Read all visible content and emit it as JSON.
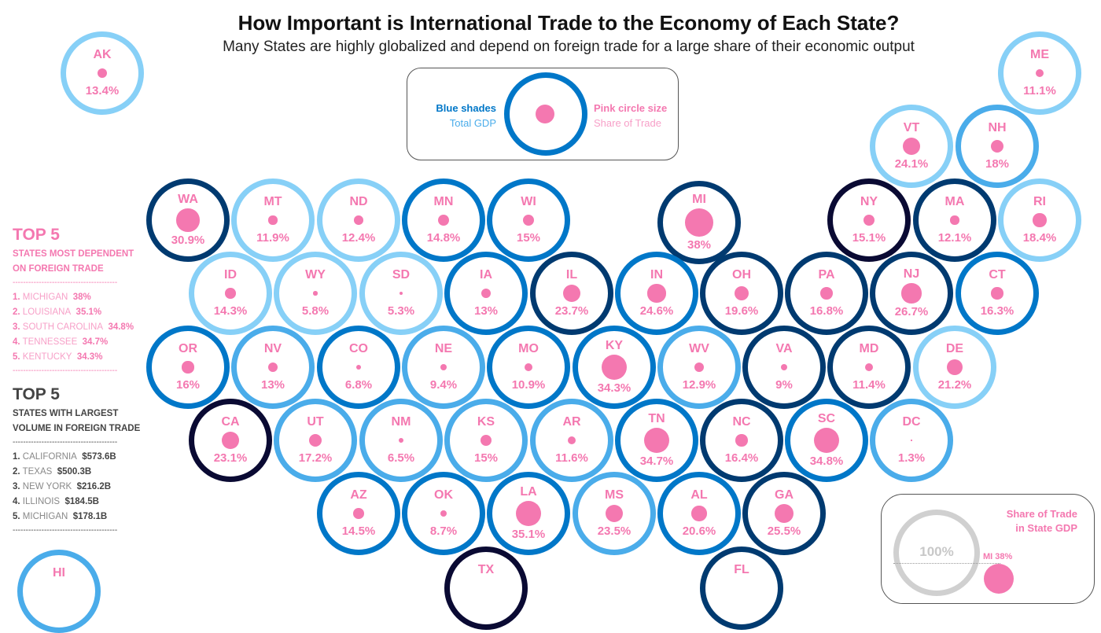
{
  "header": {
    "title": "How Important is International Trade to the Economy of Each State?",
    "subtitle": "Many States are highly globalized and depend on foreign trade for a large share of their economic output"
  },
  "legend": {
    "blue_label": "Blue shades",
    "blue_sub": "Total GDP",
    "pink_label": "Pink circle size",
    "pink_sub": "Share of Trade"
  },
  "colors": {
    "pink": "#f478b0",
    "gdp_shades": [
      "#87d0f7",
      "#4aacea",
      "#0077c8",
      "#003a70",
      "#0a0a33"
    ]
  },
  "top_dependent": {
    "title": "TOP 5",
    "subtitle_1": "STATES MOST DEPENDENT",
    "subtitle_2": "ON FOREIGN TRADE",
    "divider": "----------------------------------------",
    "items": [
      {
        "rank": "1.",
        "name": "MICHIGAN",
        "value": "38%"
      },
      {
        "rank": "2.",
        "name": "LOUISIANA",
        "value": "35.1%"
      },
      {
        "rank": "3.",
        "name": "SOUTH CAROLINA",
        "value": "34.8%"
      },
      {
        "rank": "4.",
        "name": "TENNESSEE",
        "value": "34.7%"
      },
      {
        "rank": "5.",
        "name": "KENTUCKY",
        "value": "34.3%"
      }
    ]
  },
  "top_volume": {
    "title": "TOP 5",
    "subtitle_1": "STATES WITH LARGEST",
    "subtitle_2": "VOLUME IN FOREIGN TRADE",
    "divider": "----------------------------------------",
    "items": [
      {
        "rank": "1.",
        "name": "CALIFORNIA",
        "value": "$573.6B"
      },
      {
        "rank": "2.",
        "name": "TEXAS",
        "value": "$500.3B"
      },
      {
        "rank": "3.",
        "name": "NEW YORK",
        "value": "$216.2B"
      },
      {
        "rank": "4.",
        "name": "ILLINOIS",
        "value": "$184.5B"
      },
      {
        "rank": "5.",
        "name": "MICHIGAN",
        "value": "$178.1B"
      }
    ]
  },
  "share_legend": {
    "title_1": "Share of Trade",
    "title_2": "in State GDP",
    "full": "100%",
    "example": "MI 38%"
  },
  "chart_data": {
    "type": "scatter",
    "title": "How Important is International Trade to the Economy of Each State?",
    "encoding": {
      "ring_shade": "Total GDP tier (1 lightest - 5 darkest)",
      "dot_size": "Share of Trade in State GDP (%)"
    },
    "states": [
      {
        "code": "AK",
        "share": 13.4,
        "label": "13.4%",
        "gdp_tier": 1
      },
      {
        "code": "ME",
        "share": 11.1,
        "label": "11.1%",
        "gdp_tier": 1
      },
      {
        "code": "VT",
        "share": 24.1,
        "label": "24.1%",
        "gdp_tier": 1
      },
      {
        "code": "NH",
        "share": 18,
        "label": "18%",
        "gdp_tier": 2
      },
      {
        "code": "WA",
        "share": 30.9,
        "label": "30.9%",
        "gdp_tier": 4
      },
      {
        "code": "MT",
        "share": 11.9,
        "label": "11.9%",
        "gdp_tier": 1
      },
      {
        "code": "ND",
        "share": 12.4,
        "label": "12.4%",
        "gdp_tier": 1
      },
      {
        "code": "MN",
        "share": 14.8,
        "label": "14.8%",
        "gdp_tier": 3
      },
      {
        "code": "WI",
        "share": 15,
        "label": "15%",
        "gdp_tier": 3
      },
      {
        "code": "MI",
        "share": 38,
        "label": "38%",
        "gdp_tier": 4
      },
      {
        "code": "NY",
        "share": 15.1,
        "label": "15.1%",
        "gdp_tier": 5
      },
      {
        "code": "MA",
        "share": 12.1,
        "label": "12.1%",
        "gdp_tier": 4
      },
      {
        "code": "RI",
        "share": 18.4,
        "label": "18.4%",
        "gdp_tier": 1
      },
      {
        "code": "ID",
        "share": 14.3,
        "label": "14.3%",
        "gdp_tier": 1
      },
      {
        "code": "WY",
        "share": 5.8,
        "label": "5.8%",
        "gdp_tier": 1
      },
      {
        "code": "SD",
        "share": 5.3,
        "label": "5.3%",
        "gdp_tier": 1
      },
      {
        "code": "IA",
        "share": 13,
        "label": "13%",
        "gdp_tier": 3
      },
      {
        "code": "IL",
        "share": 23.7,
        "label": "23.7%",
        "gdp_tier": 4
      },
      {
        "code": "IN",
        "share": 24.6,
        "label": "24.6%",
        "gdp_tier": 3
      },
      {
        "code": "OH",
        "share": 19.6,
        "label": "19.6%",
        "gdp_tier": 4
      },
      {
        "code": "PA",
        "share": 16.8,
        "label": "16.8%",
        "gdp_tier": 4
      },
      {
        "code": "NJ",
        "share": 26.7,
        "label": "26.7%",
        "gdp_tier": 4
      },
      {
        "code": "CT",
        "share": 16.3,
        "label": "16.3%",
        "gdp_tier": 3
      },
      {
        "code": "OR",
        "share": 16,
        "label": "16%",
        "gdp_tier": 3
      },
      {
        "code": "NV",
        "share": 13,
        "label": "13%",
        "gdp_tier": 2
      },
      {
        "code": "CO",
        "share": 6.8,
        "label": "6.8%",
        "gdp_tier": 3
      },
      {
        "code": "NE",
        "share": 9.4,
        "label": "9.4%",
        "gdp_tier": 2
      },
      {
        "code": "MO",
        "share": 10.9,
        "label": "10.9%",
        "gdp_tier": 3
      },
      {
        "code": "KY",
        "share": 34.3,
        "label": "34.3%",
        "gdp_tier": 3
      },
      {
        "code": "WV",
        "share": 12.9,
        "label": "12.9%",
        "gdp_tier": 2
      },
      {
        "code": "VA",
        "share": 9,
        "label": "9%",
        "gdp_tier": 4
      },
      {
        "code": "MD",
        "share": 11.4,
        "label": "11.4%",
        "gdp_tier": 4
      },
      {
        "code": "DE",
        "share": 21.2,
        "label": "21.2%",
        "gdp_tier": 1
      },
      {
        "code": "CA",
        "share": 23.1,
        "label": "23.1%",
        "gdp_tier": 5
      },
      {
        "code": "UT",
        "share": 17.2,
        "label": "17.2%",
        "gdp_tier": 2
      },
      {
        "code": "NM",
        "share": 6.5,
        "label": "6.5%",
        "gdp_tier": 2
      },
      {
        "code": "KS",
        "share": 15,
        "label": "15%",
        "gdp_tier": 2
      },
      {
        "code": "AR",
        "share": 11.6,
        "label": "11.6%",
        "gdp_tier": 2
      },
      {
        "code": "TN",
        "share": 34.7,
        "label": "34.7%",
        "gdp_tier": 3
      },
      {
        "code": "NC",
        "share": 16.4,
        "label": "16.4%",
        "gdp_tier": 4
      },
      {
        "code": "SC",
        "share": 34.8,
        "label": "34.8%",
        "gdp_tier": 3
      },
      {
        "code": "DC",
        "share": 1.3,
        "label": "1.3%",
        "gdp_tier": 2
      },
      {
        "code": "AZ",
        "share": 14.5,
        "label": "14.5%",
        "gdp_tier": 3
      },
      {
        "code": "OK",
        "share": 8.7,
        "label": "8.7%",
        "gdp_tier": 3
      },
      {
        "code": "LA",
        "share": 35.1,
        "label": "35.1%",
        "gdp_tier": 3
      },
      {
        "code": "MS",
        "share": 23.5,
        "label": "23.5%",
        "gdp_tier": 2
      },
      {
        "code": "AL",
        "share": 20.6,
        "label": "20.6%",
        "gdp_tier": 3
      },
      {
        "code": "GA",
        "share": 25.5,
        "label": "25.5%",
        "gdp_tier": 4
      },
      {
        "code": "TX",
        "share": null,
        "label": "",
        "gdp_tier": 5
      },
      {
        "code": "FL",
        "share": null,
        "label": "",
        "gdp_tier": 4
      },
      {
        "code": "HI",
        "share": null,
        "label": "",
        "gdp_tier": 2
      }
    ]
  }
}
